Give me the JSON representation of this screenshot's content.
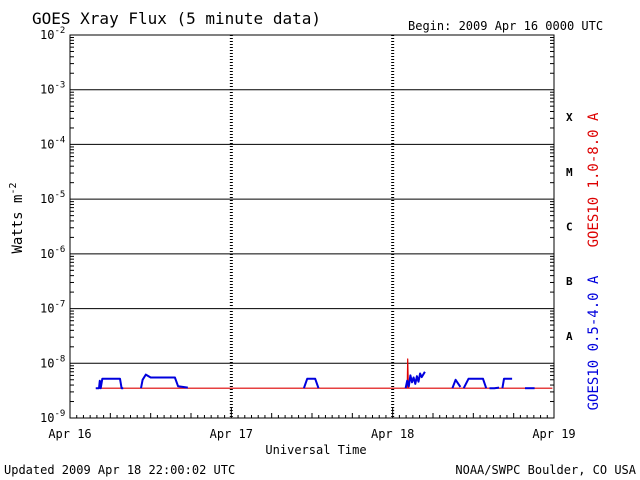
{
  "header": {
    "title": "GOES Xray Flux (5 minute data)",
    "begin_label": "Begin:  2009 Apr 16 0000 UTC"
  },
  "footer": {
    "updated": "Updated 2009 Apr 18 22:00:02 UTC",
    "credit": "NOAA/SWPC Boulder, CO USA"
  },
  "chart_data": {
    "type": "line",
    "xlabel": "Universal Time",
    "ylabel": "Watts m",
    "ylabel_sup": "-2",
    "yscale": "log",
    "ylim": [
      1e-09,
      0.01
    ],
    "xlim_days": [
      0,
      3
    ],
    "x_ticks": [
      "Apr 16",
      "Apr 17",
      "Apr 18",
      "Apr 19"
    ],
    "y_ticks": [
      {
        "base": "10",
        "exp": "-2",
        "value": 0.01
      },
      {
        "base": "10",
        "exp": "-3",
        "value": 0.001
      },
      {
        "base": "10",
        "exp": "-4",
        "value": 0.0001
      },
      {
        "base": "10",
        "exp": "-5",
        "value": 1e-05
      },
      {
        "base": "10",
        "exp": "-6",
        "value": 1e-06
      },
      {
        "base": "10",
        "exp": "-7",
        "value": 1e-07
      },
      {
        "base": "10",
        "exp": "-8",
        "value": 1e-08
      },
      {
        "base": "10",
        "exp": "-9",
        "value": 1e-09
      }
    ],
    "flare_classes": [
      {
        "label": "X",
        "value": 0.000316
      },
      {
        "label": "M",
        "value": 3.16e-05
      },
      {
        "label": "C",
        "value": 3.16e-06
      },
      {
        "label": "B",
        "value": 3.16e-07
      },
      {
        "label": "A",
        "value": 3.16e-08
      }
    ],
    "grid": true,
    "legend_position": "right-vertical",
    "series": [
      {
        "name": "GOES10 1.0-8.0 A",
        "color": "#dd0000",
        "segments": [
          [
            [
              0.16,
              3.5e-09
            ],
            [
              2.99,
              3.5e-09
            ]
          ],
          [
            [
              2.09,
              3.5e-09
            ],
            [
              2.093,
              1.2e-08
            ],
            [
              2.097,
              4e-09
            ],
            [
              2.1,
              3.5e-09
            ]
          ]
        ]
      },
      {
        "name": "GOES10 0.5-4.0 A",
        "color": "#0000dd",
        "segments": [
          [
            [
              0.16,
              3.5e-09
            ],
            [
              0.18,
              3.5e-09
            ],
            [
              0.185,
              4.8e-09
            ],
            [
              0.19,
              3.5e-09
            ],
            [
              0.2,
              5.2e-09
            ],
            [
              0.31,
              5.2e-09
            ],
            [
              0.32,
              3.5e-09
            ],
            [
              0.33,
              3.5e-09
            ]
          ],
          [
            [
              0.44,
              3.5e-09
            ],
            [
              0.45,
              5e-09
            ],
            [
              0.47,
              6.2e-09
            ],
            [
              0.5,
              5.5e-09
            ],
            [
              0.65,
              5.5e-09
            ],
            [
              0.67,
              3.8e-09
            ],
            [
              0.73,
              3.6e-09
            ]
          ],
          [
            [
              1.45,
              3.5e-09
            ],
            [
              1.47,
              5.2e-09
            ],
            [
              1.52,
              5.2e-09
            ],
            [
              1.54,
              3.5e-09
            ]
          ],
          [
            [
              2.08,
              3.5e-09
            ],
            [
              2.09,
              4.8e-09
            ],
            [
              2.1,
              3.8e-09
            ],
            [
              2.11,
              6e-09
            ],
            [
              2.12,
              4.5e-09
            ],
            [
              2.13,
              5.5e-09
            ],
            [
              2.14,
              4.2e-09
            ],
            [
              2.15,
              5.8e-09
            ],
            [
              2.16,
              4.6e-09
            ],
            [
              2.17,
              6.5e-09
            ],
            [
              2.18,
              5.6e-09
            ],
            [
              2.2,
              7e-09
            ]
          ],
          [
            [
              2.37,
              3.5e-09
            ],
            [
              2.39,
              5e-09
            ],
            [
              2.42,
              3.7e-09
            ]
          ],
          [
            [
              2.44,
              3.5e-09
            ],
            [
              2.47,
              5.2e-09
            ],
            [
              2.56,
              5.2e-09
            ],
            [
              2.58,
              3.5e-09
            ]
          ],
          [
            [
              2.6,
              3.5e-09
            ],
            [
              2.63,
              3.5e-09
            ],
            [
              2.66,
              3.6e-09
            ]
          ],
          [
            [
              2.68,
              3.5e-09
            ],
            [
              2.69,
              5.2e-09
            ],
            [
              2.74,
              5.2e-09
            ]
          ],
          [
            [
              2.82,
              3.5e-09
            ],
            [
              2.88,
              3.5e-09
            ]
          ]
        ]
      }
    ]
  }
}
